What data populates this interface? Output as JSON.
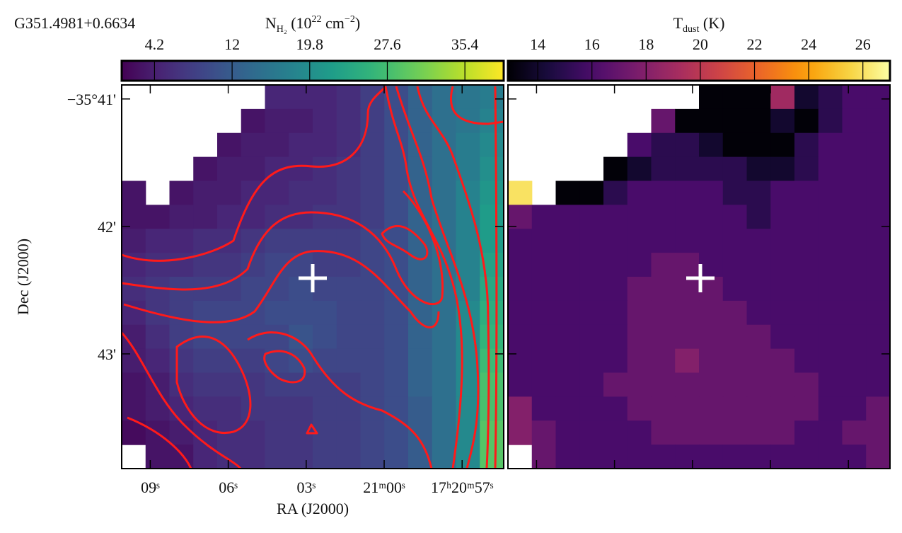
{
  "chart_data": [
    {
      "type": "heatmap",
      "title": "G351.4981+0.6634",
      "colorbar_label": [
        {
          "text": "N"
        },
        {
          "sub": "H₂"
        },
        {
          "text": " (10"
        },
        {
          "sup": "22"
        },
        {
          "text": " cm"
        },
        {
          "sup": "−2"
        },
        {
          "text": ")"
        }
      ],
      "colormap": "viridis",
      "clim": [
        0.9,
        39.3
      ],
      "cticks": [
        4.2,
        12.0,
        19.8,
        27.6,
        35.4
      ],
      "x_label": "RA (J2000)",
      "y_label": "Dec (J2000)",
      "xlim": [
        10.1,
        -4.6
      ],
      "xticks": [
        {
          "value": 9,
          "label": "09ˢ"
        },
        {
          "value": 6,
          "label": "06ˢ"
        },
        {
          "value": 3,
          "label": "03ˢ"
        },
        {
          "value": 0,
          "label": "21ᵐ00ˢ"
        },
        {
          "value": -3,
          "label": "17ʰ20ᵐ57ˢ"
        }
      ],
      "ylim": [
        43.9,
        40.89
      ],
      "yticks": [
        {
          "value": 41,
          "label": "−35°41'"
        },
        {
          "value": 42,
          "label": "42'"
        },
        {
          "value": 43,
          "label": "43'"
        }
      ],
      "contour_color": "#ff1a1a",
      "values": [
        [
          null,
          null,
          null,
          null,
          null,
          null,
          5,
          5,
          5,
          6,
          8,
          10,
          13,
          15,
          16,
          17
        ],
        [
          null,
          null,
          null,
          null,
          null,
          3,
          4,
          4,
          5,
          6,
          8,
          10,
          13,
          15,
          16,
          18
        ],
        [
          null,
          null,
          null,
          null,
          3,
          4,
          4,
          5,
          5,
          6,
          8,
          10,
          13,
          15,
          17,
          19
        ],
        [
          null,
          null,
          null,
          3,
          4,
          4,
          5,
          5,
          6,
          7,
          8,
          10,
          13,
          15,
          17,
          20
        ],
        [
          3,
          null,
          3,
          4,
          4,
          5,
          5,
          6,
          6,
          7,
          8,
          10,
          13,
          15,
          18,
          21
        ],
        [
          3,
          3,
          4,
          4,
          5,
          5,
          6,
          6,
          7,
          7,
          8,
          10,
          13,
          15,
          18,
          22
        ],
        [
          4,
          5,
          5,
          6,
          6,
          7,
          8,
          8,
          8,
          8,
          9,
          10,
          13,
          15,
          18,
          22
        ],
        [
          5,
          6,
          6,
          7,
          7,
          8,
          9,
          9,
          8,
          8,
          9,
          10,
          13,
          15,
          18,
          23
        ],
        [
          6,
          7,
          8,
          8,
          8,
          9,
          9,
          10,
          9,
          9,
          9,
          10,
          13,
          15,
          18,
          24
        ],
        [
          5,
          7,
          8,
          9,
          9,
          9,
          10,
          10,
          10,
          9,
          9,
          10,
          13,
          15,
          19,
          25
        ],
        [
          4,
          6,
          8,
          9,
          9,
          9,
          9,
          11,
          10,
          9,
          9,
          10,
          13,
          15,
          19,
          26
        ],
        [
          4,
          5,
          7,
          8,
          8,
          8,
          9,
          10,
          9,
          9,
          9,
          10,
          13,
          15,
          19,
          27
        ],
        [
          3,
          4,
          6,
          7,
          7,
          7,
          8,
          8,
          8,
          8,
          9,
          10,
          13,
          15,
          19,
          28
        ],
        [
          3,
          4,
          5,
          6,
          6,
          7,
          7,
          7,
          8,
          8,
          9,
          10,
          12,
          15,
          19,
          28
        ],
        [
          2,
          3,
          4,
          5,
          6,
          6,
          7,
          7,
          8,
          8,
          9,
          10,
          12,
          15,
          19,
          29
        ],
        [
          null,
          3,
          3,
          5,
          6,
          6,
          7,
          7,
          8,
          8,
          9,
          10,
          12,
          15,
          19,
          29
        ]
      ]
    },
    {
      "type": "heatmap",
      "colorbar_label": [
        {
          "text": "T"
        },
        {
          "sub": "dust"
        },
        {
          "text": " (K)"
        }
      ],
      "colormap": "inferno",
      "clim": [
        12.9,
        27.0
      ],
      "cticks": [
        14,
        16,
        18,
        20,
        22,
        24,
        26
      ],
      "xlim": [
        10.1,
        -4.6
      ],
      "xticks": [
        9,
        6,
        3,
        0,
        -3
      ],
      "ylim": [
        43.9,
        40.89
      ],
      "yticks": [
        41,
        42,
        43
      ],
      "values": [
        [
          null,
          null,
          null,
          null,
          null,
          null,
          null,
          null,
          13,
          13,
          13,
          19,
          14,
          15,
          16,
          16
        ],
        [
          null,
          null,
          null,
          null,
          null,
          null,
          17,
          13,
          13,
          13,
          13,
          14,
          13,
          15,
          16,
          16
        ],
        [
          null,
          null,
          null,
          null,
          null,
          16,
          15,
          15,
          14,
          13,
          13,
          13,
          15,
          16,
          16,
          16
        ],
        [
          null,
          null,
          null,
          null,
          13,
          14,
          15,
          15,
          15,
          15,
          14,
          14,
          15,
          16,
          16,
          16
        ],
        [
          26,
          null,
          13,
          13,
          15,
          16,
          16,
          16,
          16,
          15,
          15,
          16,
          16,
          16,
          16,
          16
        ],
        [
          17,
          16,
          16,
          16,
          16,
          16,
          16,
          16,
          16,
          16,
          15,
          16,
          16,
          16,
          16,
          16
        ],
        [
          16,
          16,
          16,
          16,
          16,
          16,
          16,
          16,
          16,
          16,
          16,
          16,
          16,
          16,
          16,
          16
        ],
        [
          16,
          16,
          16,
          16,
          16,
          16,
          17,
          17,
          16,
          16,
          16,
          16,
          16,
          16,
          16,
          16
        ],
        [
          16,
          16,
          16,
          16,
          16,
          17,
          17,
          17,
          17,
          16,
          16,
          16,
          16,
          16,
          16,
          16
        ],
        [
          16,
          16,
          16,
          16,
          16,
          17,
          17,
          17,
          17,
          17,
          16,
          16,
          16,
          16,
          16,
          16
        ],
        [
          16,
          16,
          16,
          16,
          16,
          17,
          17,
          17,
          17,
          17,
          17,
          16,
          16,
          16,
          16,
          16
        ],
        [
          16,
          16,
          16,
          16,
          16,
          17,
          17,
          18,
          17,
          17,
          17,
          17,
          16,
          16,
          16,
          16
        ],
        [
          16,
          16,
          16,
          16,
          17,
          17,
          17,
          17,
          17,
          17,
          17,
          17,
          17,
          16,
          16,
          16
        ],
        [
          18,
          16,
          16,
          16,
          16,
          17,
          17,
          17,
          17,
          17,
          17,
          17,
          17,
          16,
          16,
          17
        ],
        [
          18,
          17,
          16,
          16,
          16,
          16,
          17,
          17,
          17,
          17,
          17,
          17,
          16,
          16,
          17,
          17
        ],
        [
          null,
          17,
          16,
          16,
          16,
          16,
          16,
          16,
          16,
          16,
          16,
          16,
          16,
          16,
          16,
          17
        ]
      ]
    }
  ]
}
